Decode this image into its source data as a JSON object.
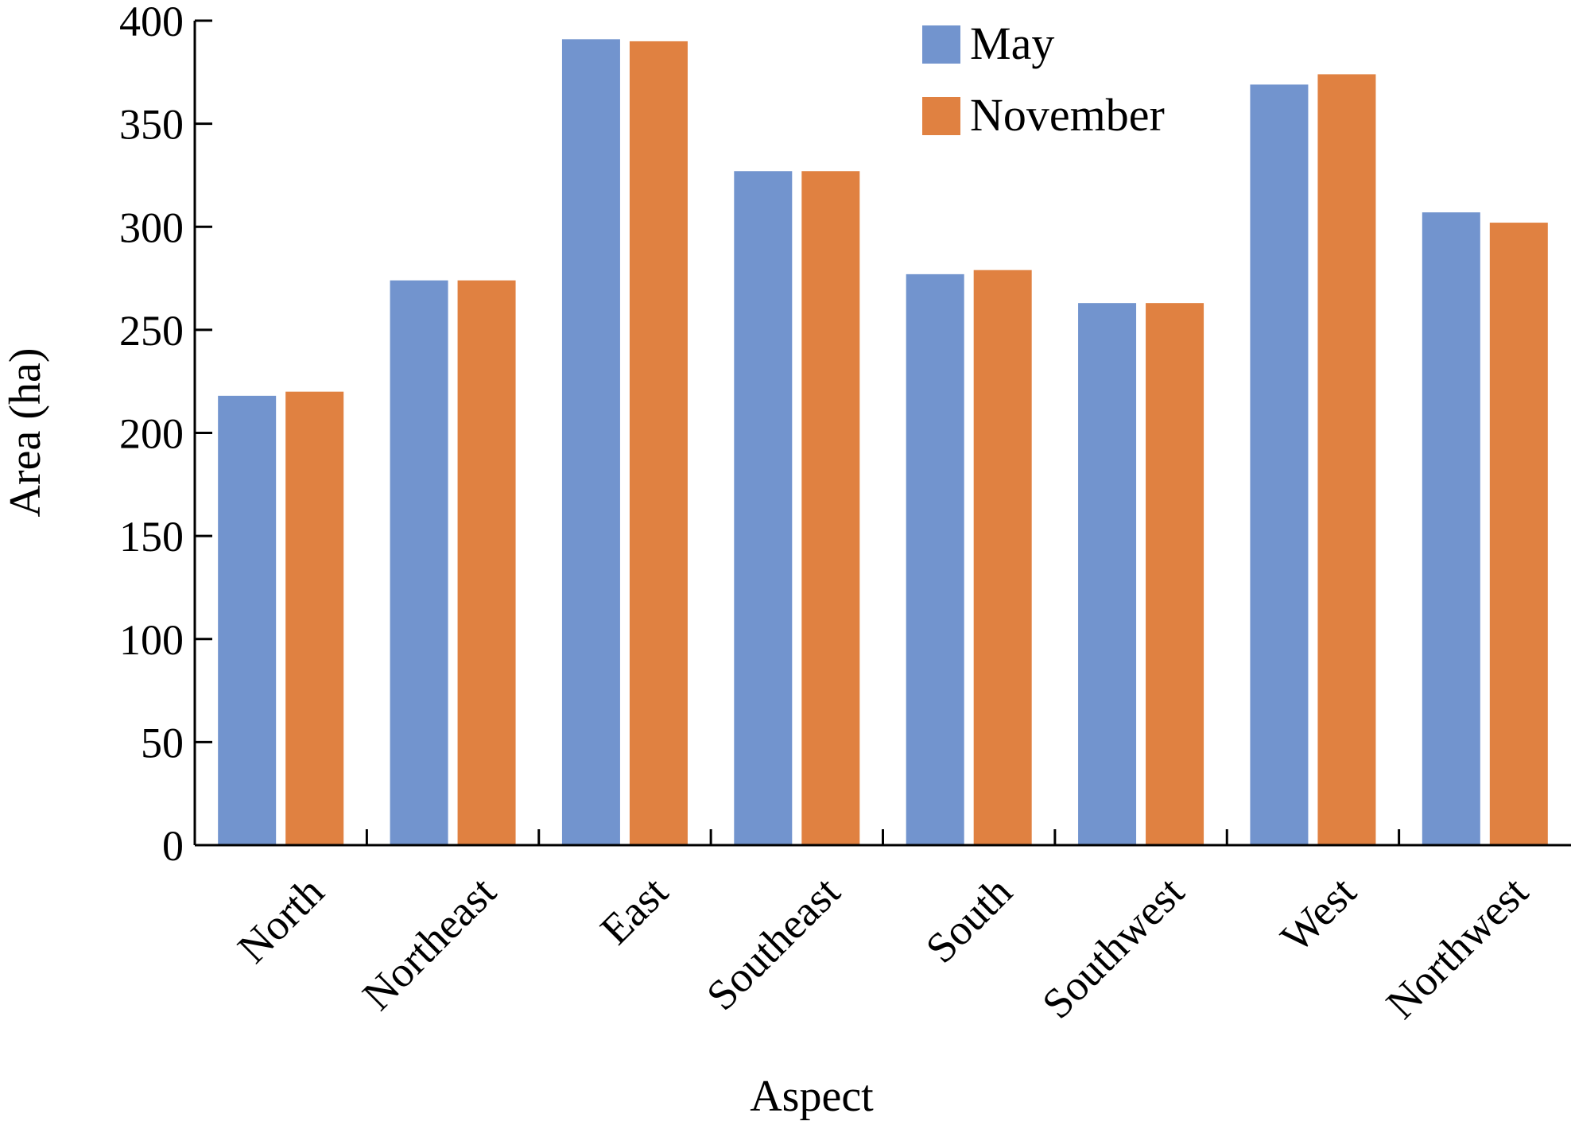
{
  "chart_data": {
    "type": "bar",
    "title": "",
    "xlabel": "Aspect",
    "ylabel": "Area (ha)",
    "ylim": [
      0,
      400
    ],
    "yticks": [
      0,
      50,
      100,
      150,
      200,
      250,
      300,
      350,
      400
    ],
    "categories": [
      "North",
      "Northeast",
      "East",
      "Southeast",
      "South",
      "Southwest",
      "West",
      "Northwest"
    ],
    "series": [
      {
        "name": "May",
        "color": "#7294CE",
        "values": [
          218,
          274,
          391,
          327,
          277,
          263,
          369,
          307
        ]
      },
      {
        "name": "November",
        "color": "#E08141",
        "values": [
          220,
          274,
          390,
          327,
          279,
          263,
          374,
          302
        ]
      }
    ],
    "legend_position": "top-right",
    "grid": false
  }
}
